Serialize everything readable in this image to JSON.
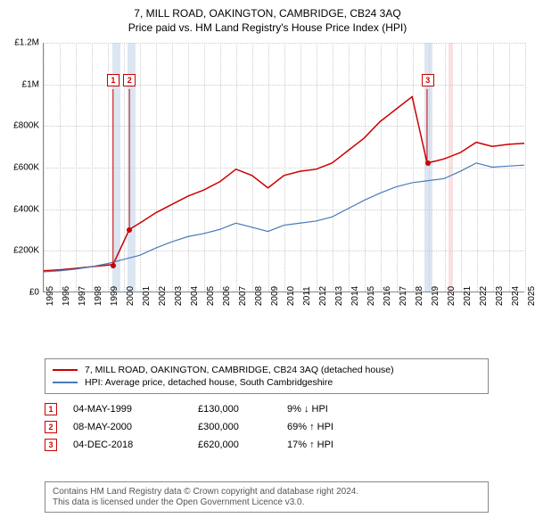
{
  "titles": {
    "line1": "7, MILL ROAD, OAKINGTON, CAMBRIDGE, CB24 3AQ",
    "line2": "Price paid vs. HM Land Registry's House Price Index (HPI)"
  },
  "chart": {
    "type": "line",
    "background_color": "#ffffff",
    "grid_color": "#cccccc",
    "axis_color": "#888888",
    "band_blue_color": "#dce6f2",
    "band_pink_color": "#f9e0e2",
    "ylim": [
      0,
      1200000
    ],
    "ytick_step": 200000,
    "ytick_labels": [
      "£0",
      "£200K",
      "£400K",
      "£600K",
      "£800K",
      "£1M",
      "£1.2M"
    ],
    "xlim": [
      1995,
      2025
    ],
    "xtick_step": 1,
    "xticks": [
      1995,
      1996,
      1997,
      1998,
      1999,
      2000,
      2001,
      2002,
      2003,
      2004,
      2005,
      2006,
      2007,
      2008,
      2009,
      2010,
      2011,
      2012,
      2013,
      2014,
      2015,
      2016,
      2017,
      2018,
      2019,
      2020,
      2021,
      2022,
      2023,
      2024,
      2025
    ],
    "recession_bands": [
      {
        "start": 1999.3,
        "end": 1999.8,
        "color": "#dce6f2"
      },
      {
        "start": 2000.2,
        "end": 2000.7,
        "color": "#dce6f2"
      },
      {
        "start": 2018.7,
        "end": 2019.2,
        "color": "#dce6f2"
      },
      {
        "start": 2020.2,
        "end": 2020.5,
        "color": "#f9e0e2"
      }
    ],
    "series": [
      {
        "name": "property",
        "label": "7, MILL ROAD, OAKINGTON, CAMBRIDGE, CB24 3AQ (detached house)",
        "color": "#cc0000",
        "width": 1.5,
        "data": [
          [
            1995,
            100000
          ],
          [
            1996,
            105000
          ],
          [
            1997,
            112000
          ],
          [
            1998,
            120000
          ],
          [
            1999.33,
            130000
          ],
          [
            2000.35,
            300000
          ],
          [
            2001,
            330000
          ],
          [
            2002,
            380000
          ],
          [
            2003,
            420000
          ],
          [
            2004,
            460000
          ],
          [
            2005,
            490000
          ],
          [
            2006,
            530000
          ],
          [
            2007,
            590000
          ],
          [
            2008,
            560000
          ],
          [
            2009,
            500000
          ],
          [
            2010,
            560000
          ],
          [
            2011,
            580000
          ],
          [
            2012,
            590000
          ],
          [
            2013,
            620000
          ],
          [
            2014,
            680000
          ],
          [
            2015,
            740000
          ],
          [
            2016,
            820000
          ],
          [
            2017,
            880000
          ],
          [
            2018,
            940000
          ],
          [
            2018.93,
            620000
          ],
          [
            2019.5,
            630000
          ],
          [
            2020,
            640000
          ],
          [
            2021,
            670000
          ],
          [
            2022,
            720000
          ],
          [
            2023,
            700000
          ],
          [
            2024,
            710000
          ],
          [
            2025,
            715000
          ]
        ]
      },
      {
        "name": "hpi",
        "label": "HPI: Average price, detached house, South Cambridgeshire",
        "color": "#4a7ab8",
        "width": 1.2,
        "data": [
          [
            1995,
            95000
          ],
          [
            1996,
            100000
          ],
          [
            1997,
            108000
          ],
          [
            1998,
            120000
          ],
          [
            1999,
            135000
          ],
          [
            2000,
            155000
          ],
          [
            2001,
            175000
          ],
          [
            2002,
            210000
          ],
          [
            2003,
            240000
          ],
          [
            2004,
            265000
          ],
          [
            2005,
            280000
          ],
          [
            2006,
            300000
          ],
          [
            2007,
            330000
          ],
          [
            2008,
            310000
          ],
          [
            2009,
            290000
          ],
          [
            2010,
            320000
          ],
          [
            2011,
            330000
          ],
          [
            2012,
            340000
          ],
          [
            2013,
            360000
          ],
          [
            2014,
            400000
          ],
          [
            2015,
            440000
          ],
          [
            2016,
            475000
          ],
          [
            2017,
            505000
          ],
          [
            2018,
            525000
          ],
          [
            2019,
            535000
          ],
          [
            2020,
            545000
          ],
          [
            2021,
            580000
          ],
          [
            2022,
            620000
          ],
          [
            2023,
            600000
          ],
          [
            2024,
            605000
          ],
          [
            2025,
            610000
          ]
        ]
      }
    ],
    "markers": [
      {
        "n": "1",
        "x": 1999.33,
        "y": 130000,
        "box_y": 1020000
      },
      {
        "n": "2",
        "x": 2000.35,
        "y": 300000,
        "box_y": 1020000
      },
      {
        "n": "3",
        "x": 2018.93,
        "y": 620000,
        "box_y": 1020000
      }
    ],
    "title_fontsize": 12,
    "axis_fontsize": 10
  },
  "legend": {
    "items": [
      {
        "color": "#cc0000",
        "label": "7, MILL ROAD, OAKINGTON, CAMBRIDGE, CB24 3AQ (detached house)"
      },
      {
        "color": "#4a7ab8",
        "label": "HPI: Average price, detached house, South Cambridgeshire"
      }
    ]
  },
  "sales": [
    {
      "n": "1",
      "date": "04-MAY-1999",
      "price": "£130,000",
      "delta": "9% ↓ HPI"
    },
    {
      "n": "2",
      "date": "08-MAY-2000",
      "price": "£300,000",
      "delta": "69% ↑ HPI"
    },
    {
      "n": "3",
      "date": "04-DEC-2018",
      "price": "£620,000",
      "delta": "17% ↑ HPI"
    }
  ],
  "footer": {
    "line1": "Contains HM Land Registry data © Crown copyright and database right 2024.",
    "line2": "This data is licensed under the Open Government Licence v3.0."
  }
}
